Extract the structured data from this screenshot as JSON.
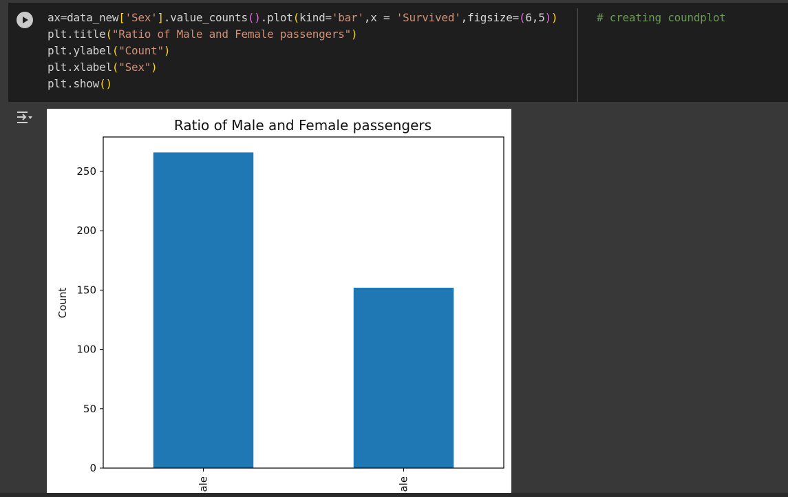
{
  "code": {
    "lines": [
      [
        {
          "t": "ax=data_new",
          "c": ""
        },
        {
          "t": "[",
          "c": "p1"
        },
        {
          "t": "'Sex'",
          "c": "str"
        },
        {
          "t": "]",
          "c": "p1"
        },
        {
          "t": ".value_counts",
          "c": ""
        },
        {
          "t": "()",
          "c": "p2"
        },
        {
          "t": ".plot",
          "c": ""
        },
        {
          "t": "(",
          "c": "p1"
        },
        {
          "t": "kind=",
          "c": ""
        },
        {
          "t": "'bar'",
          "c": "str"
        },
        {
          "t": ",x = ",
          "c": ""
        },
        {
          "t": "'Survived'",
          "c": "str"
        },
        {
          "t": ",figsize=",
          "c": ""
        },
        {
          "t": "(",
          "c": "p2"
        },
        {
          "t": "6,5",
          "c": ""
        },
        {
          "t": ")",
          "c": "p2"
        },
        {
          "t": ")",
          "c": "p1"
        }
      ],
      [
        {
          "t": "plt.title",
          "c": ""
        },
        {
          "t": "(",
          "c": "p1"
        },
        {
          "t": "\"Ratio of Male and Female passengers\"",
          "c": "str"
        },
        {
          "t": ")",
          "c": "p1"
        }
      ],
      [
        {
          "t": "plt.ylabel",
          "c": ""
        },
        {
          "t": "(",
          "c": "p1"
        },
        {
          "t": "\"Count\"",
          "c": "str"
        },
        {
          "t": ")",
          "c": "p1"
        }
      ],
      [
        {
          "t": "plt.xlabel",
          "c": ""
        },
        {
          "t": "(",
          "c": "p1"
        },
        {
          "t": "\"Sex\"",
          "c": "str"
        },
        {
          "t": ")",
          "c": "p1"
        }
      ],
      [
        {
          "t": "plt.show",
          "c": ""
        },
        {
          "t": "()",
          "c": "p1"
        }
      ]
    ],
    "comment": "# creating coundplot"
  },
  "icons": {
    "run": "run-cell-icon",
    "output": "output-toggle-icon"
  },
  "colors": {
    "bar": "#1f77b4",
    "cell_bg": "#1e1e1e",
    "page_bg": "#383838"
  },
  "chart_data": {
    "type": "bar",
    "title": "Ratio of Male and Female passengers",
    "ylabel": "Count",
    "xlabel": "",
    "categories": [
      "ale",
      "ale"
    ],
    "values": [
      266,
      152
    ],
    "ylim": [
      0,
      279
    ],
    "yticks": [
      0,
      50,
      100,
      150,
      200,
      250
    ],
    "grid": false,
    "legend": "none"
  }
}
